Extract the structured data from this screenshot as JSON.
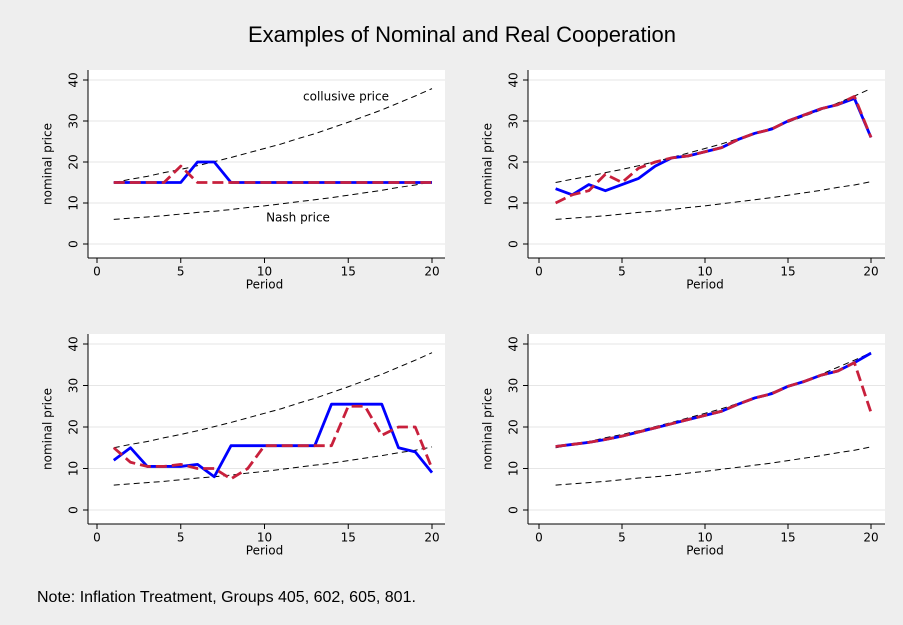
{
  "title": "Examples of Nominal and Real Cooperation",
  "note": "Note: Inflation Treatment, Groups 405, 602, 605, 801.",
  "chart_data": [
    {
      "type": "line",
      "xlabel": "Period",
      "ylabel": "nominal price",
      "x": [
        1,
        2,
        3,
        4,
        5,
        6,
        7,
        8,
        9,
        10,
        11,
        12,
        13,
        14,
        15,
        16,
        17,
        18,
        19,
        20
      ],
      "xlim": [
        0,
        20
      ],
      "ylim": [
        0,
        40
      ],
      "xticks": [
        0,
        5,
        10,
        15,
        20
      ],
      "yticks": [
        0,
        10,
        20,
        30,
        40
      ],
      "grid": true,
      "annotations": [
        "collusive price",
        "Nash price"
      ],
      "series": [
        {
          "color": "#000000",
          "dash": true,
          "values": [
            15.0,
            15.8,
            16.5,
            17.4,
            18.2,
            19.1,
            20.1,
            21.1,
            22.2,
            23.3,
            24.4,
            25.7,
            26.9,
            28.3,
            29.7,
            31.2,
            32.7,
            34.4,
            36.1,
            37.9
          ]
        },
        {
          "color": "#000000",
          "dash": true,
          "values": [
            6.0,
            6.3,
            6.6,
            6.9,
            7.3,
            7.7,
            8.0,
            8.4,
            8.9,
            9.3,
            9.8,
            10.3,
            10.8,
            11.3,
            11.9,
            12.5,
            13.1,
            13.8,
            14.4,
            15.2
          ]
        },
        {
          "color": "#0000ff",
          "dash": false,
          "values": [
            15,
            15,
            15,
            15,
            15,
            20,
            20,
            15,
            15,
            15,
            15,
            15,
            15,
            15,
            15,
            15,
            15,
            15,
            15,
            15
          ]
        },
        {
          "color": "#c8203c",
          "dash": true,
          "values": [
            15,
            15,
            15,
            15,
            19,
            15,
            15,
            15,
            15,
            15,
            15,
            15,
            15,
            15,
            15,
            15,
            15,
            15,
            15,
            15
          ]
        }
      ]
    },
    {
      "type": "line",
      "xlabel": "Period",
      "ylabel": "nominal price",
      "x": [
        1,
        2,
        3,
        4,
        5,
        6,
        7,
        8,
        9,
        10,
        11,
        12,
        13,
        14,
        15,
        16,
        17,
        18,
        19,
        20
      ],
      "xlim": [
        0,
        20
      ],
      "ylim": [
        0,
        40
      ],
      "xticks": [
        0,
        5,
        10,
        15,
        20
      ],
      "yticks": [
        0,
        10,
        20,
        30,
        40
      ],
      "grid": true,
      "series": [
        {
          "color": "#000000",
          "dash": true,
          "values": [
            15.0,
            15.8,
            16.5,
            17.4,
            18.2,
            19.1,
            20.1,
            21.1,
            22.2,
            23.3,
            24.4,
            25.7,
            26.9,
            28.3,
            29.7,
            31.2,
            32.7,
            34.4,
            36.1,
            37.9
          ]
        },
        {
          "color": "#000000",
          "dash": true,
          "values": [
            6.0,
            6.3,
            6.6,
            6.9,
            7.3,
            7.7,
            8.0,
            8.4,
            8.9,
            9.3,
            9.8,
            10.3,
            10.8,
            11.3,
            11.9,
            12.5,
            13.1,
            13.8,
            14.4,
            15.2
          ]
        },
        {
          "color": "#0000ff",
          "dash": false,
          "values": [
            13.5,
            12,
            14.5,
            13,
            14.5,
            16,
            19,
            21,
            21.5,
            22.5,
            23.5,
            25.5,
            27,
            28,
            30,
            31.5,
            33,
            34,
            35.5,
            26
          ]
        },
        {
          "color": "#c8203c",
          "dash": true,
          "values": [
            10,
            12,
            13,
            17,
            15,
            18.5,
            20,
            21,
            21.5,
            22.5,
            23.5,
            25.5,
            27,
            28,
            30,
            31.5,
            33,
            34,
            36,
            26
          ]
        }
      ]
    },
    {
      "type": "line",
      "xlabel": "Period",
      "ylabel": "nominal price",
      "x": [
        1,
        2,
        3,
        4,
        5,
        6,
        7,
        8,
        9,
        10,
        11,
        12,
        13,
        14,
        15,
        16,
        17,
        18,
        19,
        20
      ],
      "xlim": [
        0,
        20
      ],
      "ylim": [
        0,
        40
      ],
      "xticks": [
        0,
        5,
        10,
        15,
        20
      ],
      "yticks": [
        0,
        10,
        20,
        30,
        40
      ],
      "grid": true,
      "series": [
        {
          "color": "#000000",
          "dash": true,
          "values": [
            15.0,
            15.8,
            16.5,
            17.4,
            18.2,
            19.1,
            20.1,
            21.1,
            22.2,
            23.3,
            24.4,
            25.7,
            26.9,
            28.3,
            29.7,
            31.2,
            32.7,
            34.4,
            36.1,
            37.9
          ]
        },
        {
          "color": "#000000",
          "dash": true,
          "values": [
            6.0,
            6.3,
            6.6,
            6.9,
            7.3,
            7.7,
            8.0,
            8.4,
            8.9,
            9.3,
            9.8,
            10.3,
            10.8,
            11.3,
            11.9,
            12.5,
            13.1,
            13.8,
            14.4,
            15.2
          ]
        },
        {
          "color": "#0000ff",
          "dash": false,
          "values": [
            12,
            15,
            10.5,
            10.5,
            10.5,
            11,
            8,
            15.5,
            15.5,
            15.5,
            15.5,
            15.5,
            15.5,
            25.5,
            25.5,
            25.5,
            25.5,
            15,
            14,
            9
          ]
        },
        {
          "color": "#c8203c",
          "dash": true,
          "values": [
            15,
            11.5,
            10.5,
            10.5,
            11,
            10,
            10,
            7.5,
            10,
            15.5,
            15.5,
            15.5,
            15.5,
            15.5,
            25,
            25,
            18,
            20,
            20,
            10
          ]
        }
      ]
    },
    {
      "type": "line",
      "xlabel": "Period",
      "ylabel": "nominal price",
      "x": [
        1,
        2,
        3,
        4,
        5,
        6,
        7,
        8,
        9,
        10,
        11,
        12,
        13,
        14,
        15,
        16,
        17,
        18,
        19,
        20
      ],
      "xlim": [
        0,
        20
      ],
      "ylim": [
        0,
        40
      ],
      "xticks": [
        0,
        5,
        10,
        15,
        20
      ],
      "yticks": [
        0,
        10,
        20,
        30,
        40
      ],
      "grid": true,
      "series": [
        {
          "color": "#000000",
          "dash": true,
          "values": [
            15.0,
            15.8,
            16.5,
            17.4,
            18.2,
            19.1,
            20.1,
            21.1,
            22.2,
            23.3,
            24.4,
            25.7,
            26.9,
            28.3,
            29.7,
            31.2,
            32.7,
            34.4,
            36.1,
            37.9
          ]
        },
        {
          "color": "#000000",
          "dash": true,
          "values": [
            6.0,
            6.3,
            6.6,
            6.9,
            7.3,
            7.7,
            8.0,
            8.4,
            8.9,
            9.3,
            9.8,
            10.3,
            10.8,
            11.3,
            11.9,
            12.5,
            13.1,
            13.8,
            14.4,
            15.2
          ]
        },
        {
          "color": "#0000ff",
          "dash": false,
          "values": [
            15.3,
            15.8,
            16.3,
            17,
            17.8,
            18.8,
            19.8,
            20.8,
            21.8,
            22.8,
            23.8,
            25.5,
            27,
            28,
            29.8,
            31,
            32.5,
            33.5,
            35.5,
            37.8
          ]
        },
        {
          "color": "#c8203c",
          "dash": true,
          "values": [
            15.3,
            15.8,
            16.3,
            17,
            17.8,
            18.8,
            19.8,
            20.8,
            21.8,
            22.8,
            23.8,
            25.5,
            27,
            28,
            29.8,
            31,
            32.5,
            33.5,
            35.5,
            23.5
          ]
        }
      ]
    }
  ]
}
